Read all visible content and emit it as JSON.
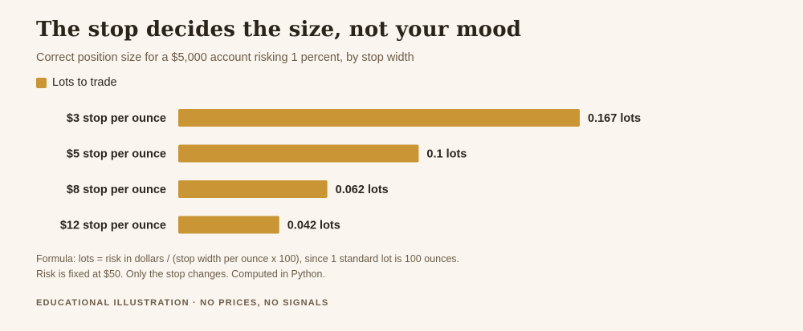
{
  "title": "The stop decides the size, not your mood",
  "subtitle": "Correct position size for a $5,000 account risking 1 percent, by stop width",
  "legend": {
    "label": "Lots to trade"
  },
  "colors": {
    "bar": "#c99535",
    "background": "#faf6ef",
    "label": "#2a2620",
    "muted": "#6b5c4a"
  },
  "chart_data": {
    "type": "bar",
    "orientation": "horizontal",
    "categories": [
      "$3 stop per ounce",
      "$5 stop per ounce",
      "$8 stop per ounce",
      "$12 stop per ounce"
    ],
    "series": [
      {
        "name": "Lots to trade",
        "values": [
          0.167,
          0.1,
          0.062,
          0.042
        ]
      }
    ],
    "value_labels": [
      "0.167 lots",
      "0.1 lots",
      "0.062 lots",
      "0.042 lots"
    ],
    "xlim": [
      0,
      0.167
    ],
    "grid": false,
    "legend_position": "top-left"
  },
  "notes": [
    "Formula: lots = risk in dollars / (stop width per ounce x 100), since 1 standard lot is 100 ounces.",
    "Risk is fixed at $50. Only the stop changes. Computed in Python."
  ],
  "footer": "EDUCATIONAL ILLUSTRATION · NO PRICES, NO SIGNALS"
}
